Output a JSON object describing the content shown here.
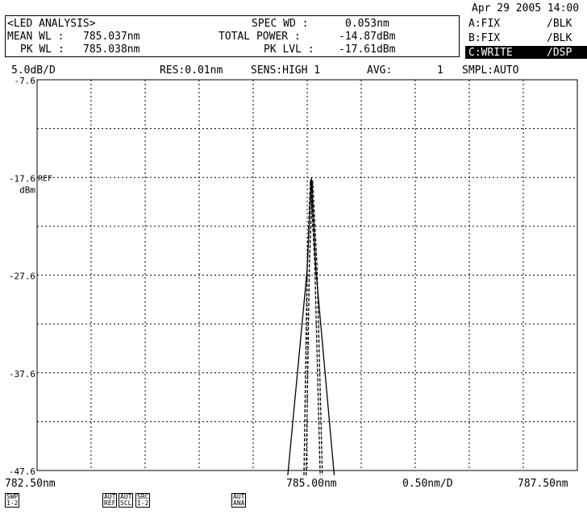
{
  "datetime": "Apr 29 2005 14:00",
  "analysis": {
    "title": "<LED ANALYSIS>",
    "mean_wl_label": "MEAN WL :",
    "mean_wl": "785.037nm",
    "pk_wl_label": "PK WL :",
    "pk_wl": "785.038nm",
    "spec_wd_label": "SPEC WD :",
    "spec_wd": "0.053nm",
    "total_power_label": "TOTAL POWER :",
    "total_power": "-14.87dBm",
    "pk_lvl_label": "PK LVL :",
    "pk_lvl": "-17.61dBm"
  },
  "traces": [
    {
      "name": "A:FIX",
      "mode": "/BLK"
    },
    {
      "name": "B:FIX",
      "mode": "/BLK"
    },
    {
      "name": "C:WRITE",
      "mode": "/DSP"
    }
  ],
  "settings": {
    "scale": "5.0dB/D",
    "res": "RES:0.01nm",
    "sens": "SENS:HIGH 1",
    "avg_label": "AVG:",
    "avg": "1",
    "smpl": "SMPL:AUTO"
  },
  "chart_data": {
    "type": "line",
    "xlim": [
      782.5,
      787.5
    ],
    "ylim": [
      -47.6,
      -7.6
    ],
    "yticks": [
      "-7.6",
      "-17.6",
      "-27.6",
      "-37.6",
      "-47.6"
    ],
    "y_unit": "dBm",
    "ref_label": "REF",
    "ref_level": -17.6,
    "xticks": {
      "left": "782.50nm",
      "center": "785.00nm",
      "span": "0.50nm/D",
      "right": "787.50nm"
    },
    "grid": true,
    "series": [
      {
        "style": "solid",
        "x": [
          784.82,
          785.0,
          785.038,
          785.08,
          785.25
        ],
        "y": [
          -48.5,
          -27.0,
          -17.61,
          -27.0,
          -48.5
        ]
      },
      {
        "style": "dashed",
        "x": [
          784.97,
          785.0,
          785.03,
          785.07,
          785.12
        ],
        "y": [
          -48.5,
          -26.5,
          -17.9,
          -26.5,
          -48.5
        ]
      },
      {
        "style": "dashed",
        "x": [
          784.99,
          785.02,
          785.05,
          785.09,
          785.14
        ],
        "y": [
          -48.5,
          -26.5,
          -17.9,
          -26.5,
          -48.5
        ]
      }
    ]
  },
  "softkeys": [
    {
      "id": "swp",
      "label": "SWP\n1-2"
    },
    {
      "id": "aut-ref",
      "label": "AUT\nREF"
    },
    {
      "id": "aut-scl",
      "label": "AUT\nSCL"
    },
    {
      "id": "src",
      "label": "SRC\n1-2"
    },
    {
      "id": "aut-ana",
      "label": "AUT\nANA"
    }
  ]
}
